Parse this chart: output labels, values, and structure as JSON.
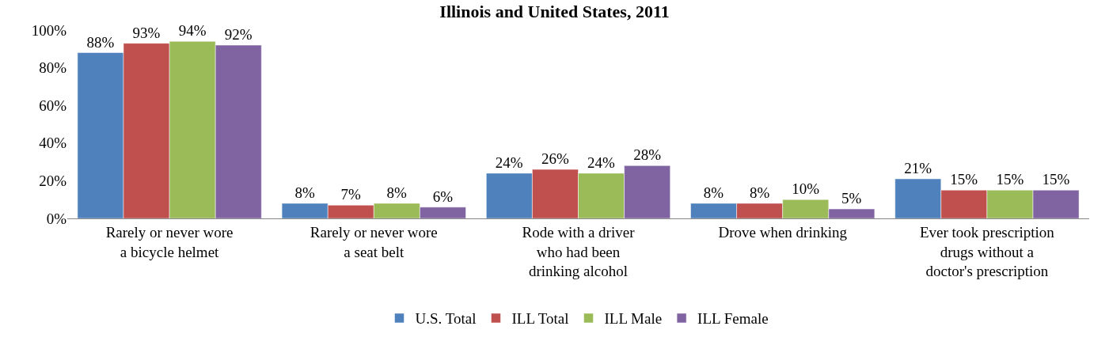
{
  "chart_data": {
    "type": "bar",
    "title": "Illinois and United States, 2011",
    "categories": [
      "Rarely or never wore\na bicycle helmet",
      "Rarely or never wore\na seat belt",
      "Rode with a driver\nwho had been\ndrinking alcohol",
      "Drove when drinking",
      "Ever took prescription\ndrugs without a\ndoctor's prescription"
    ],
    "series": [
      {
        "name": "U.S. Total",
        "color": "#4f81bd",
        "values": [
          88,
          8,
          24,
          8,
          21
        ],
        "value_labels": [
          "88%",
          "8%",
          "24%",
          "8%",
          "21%"
        ]
      },
      {
        "name": "ILL Total",
        "color": "#c0504d",
        "values": [
          93,
          7,
          26,
          8,
          15
        ],
        "value_labels": [
          "93%",
          "7%",
          "26%",
          "8%",
          "15%"
        ]
      },
      {
        "name": "ILL Male",
        "color": "#9bbb59",
        "values": [
          94,
          8,
          24,
          10,
          15
        ],
        "value_labels": [
          "94%",
          "8%",
          "24%",
          "10%",
          "15%"
        ]
      },
      {
        "name": "ILL Female",
        "color": "#8064a2",
        "values": [
          92,
          6,
          28,
          5,
          15
        ],
        "value_labels": [
          "92%",
          "6%",
          "28%",
          "5%",
          "15%"
        ]
      }
    ],
    "ylim": [
      0,
      100
    ],
    "yticks": [
      {
        "value": 0,
        "label": "0%"
      },
      {
        "value": 20,
        "label": "20%"
      },
      {
        "value": 40,
        "label": "40%"
      },
      {
        "value": 60,
        "label": "60%"
      },
      {
        "value": 80,
        "label": "80%"
      },
      {
        "value": 100,
        "label": "100%"
      }
    ],
    "grid": false,
    "legend": "bottom"
  }
}
